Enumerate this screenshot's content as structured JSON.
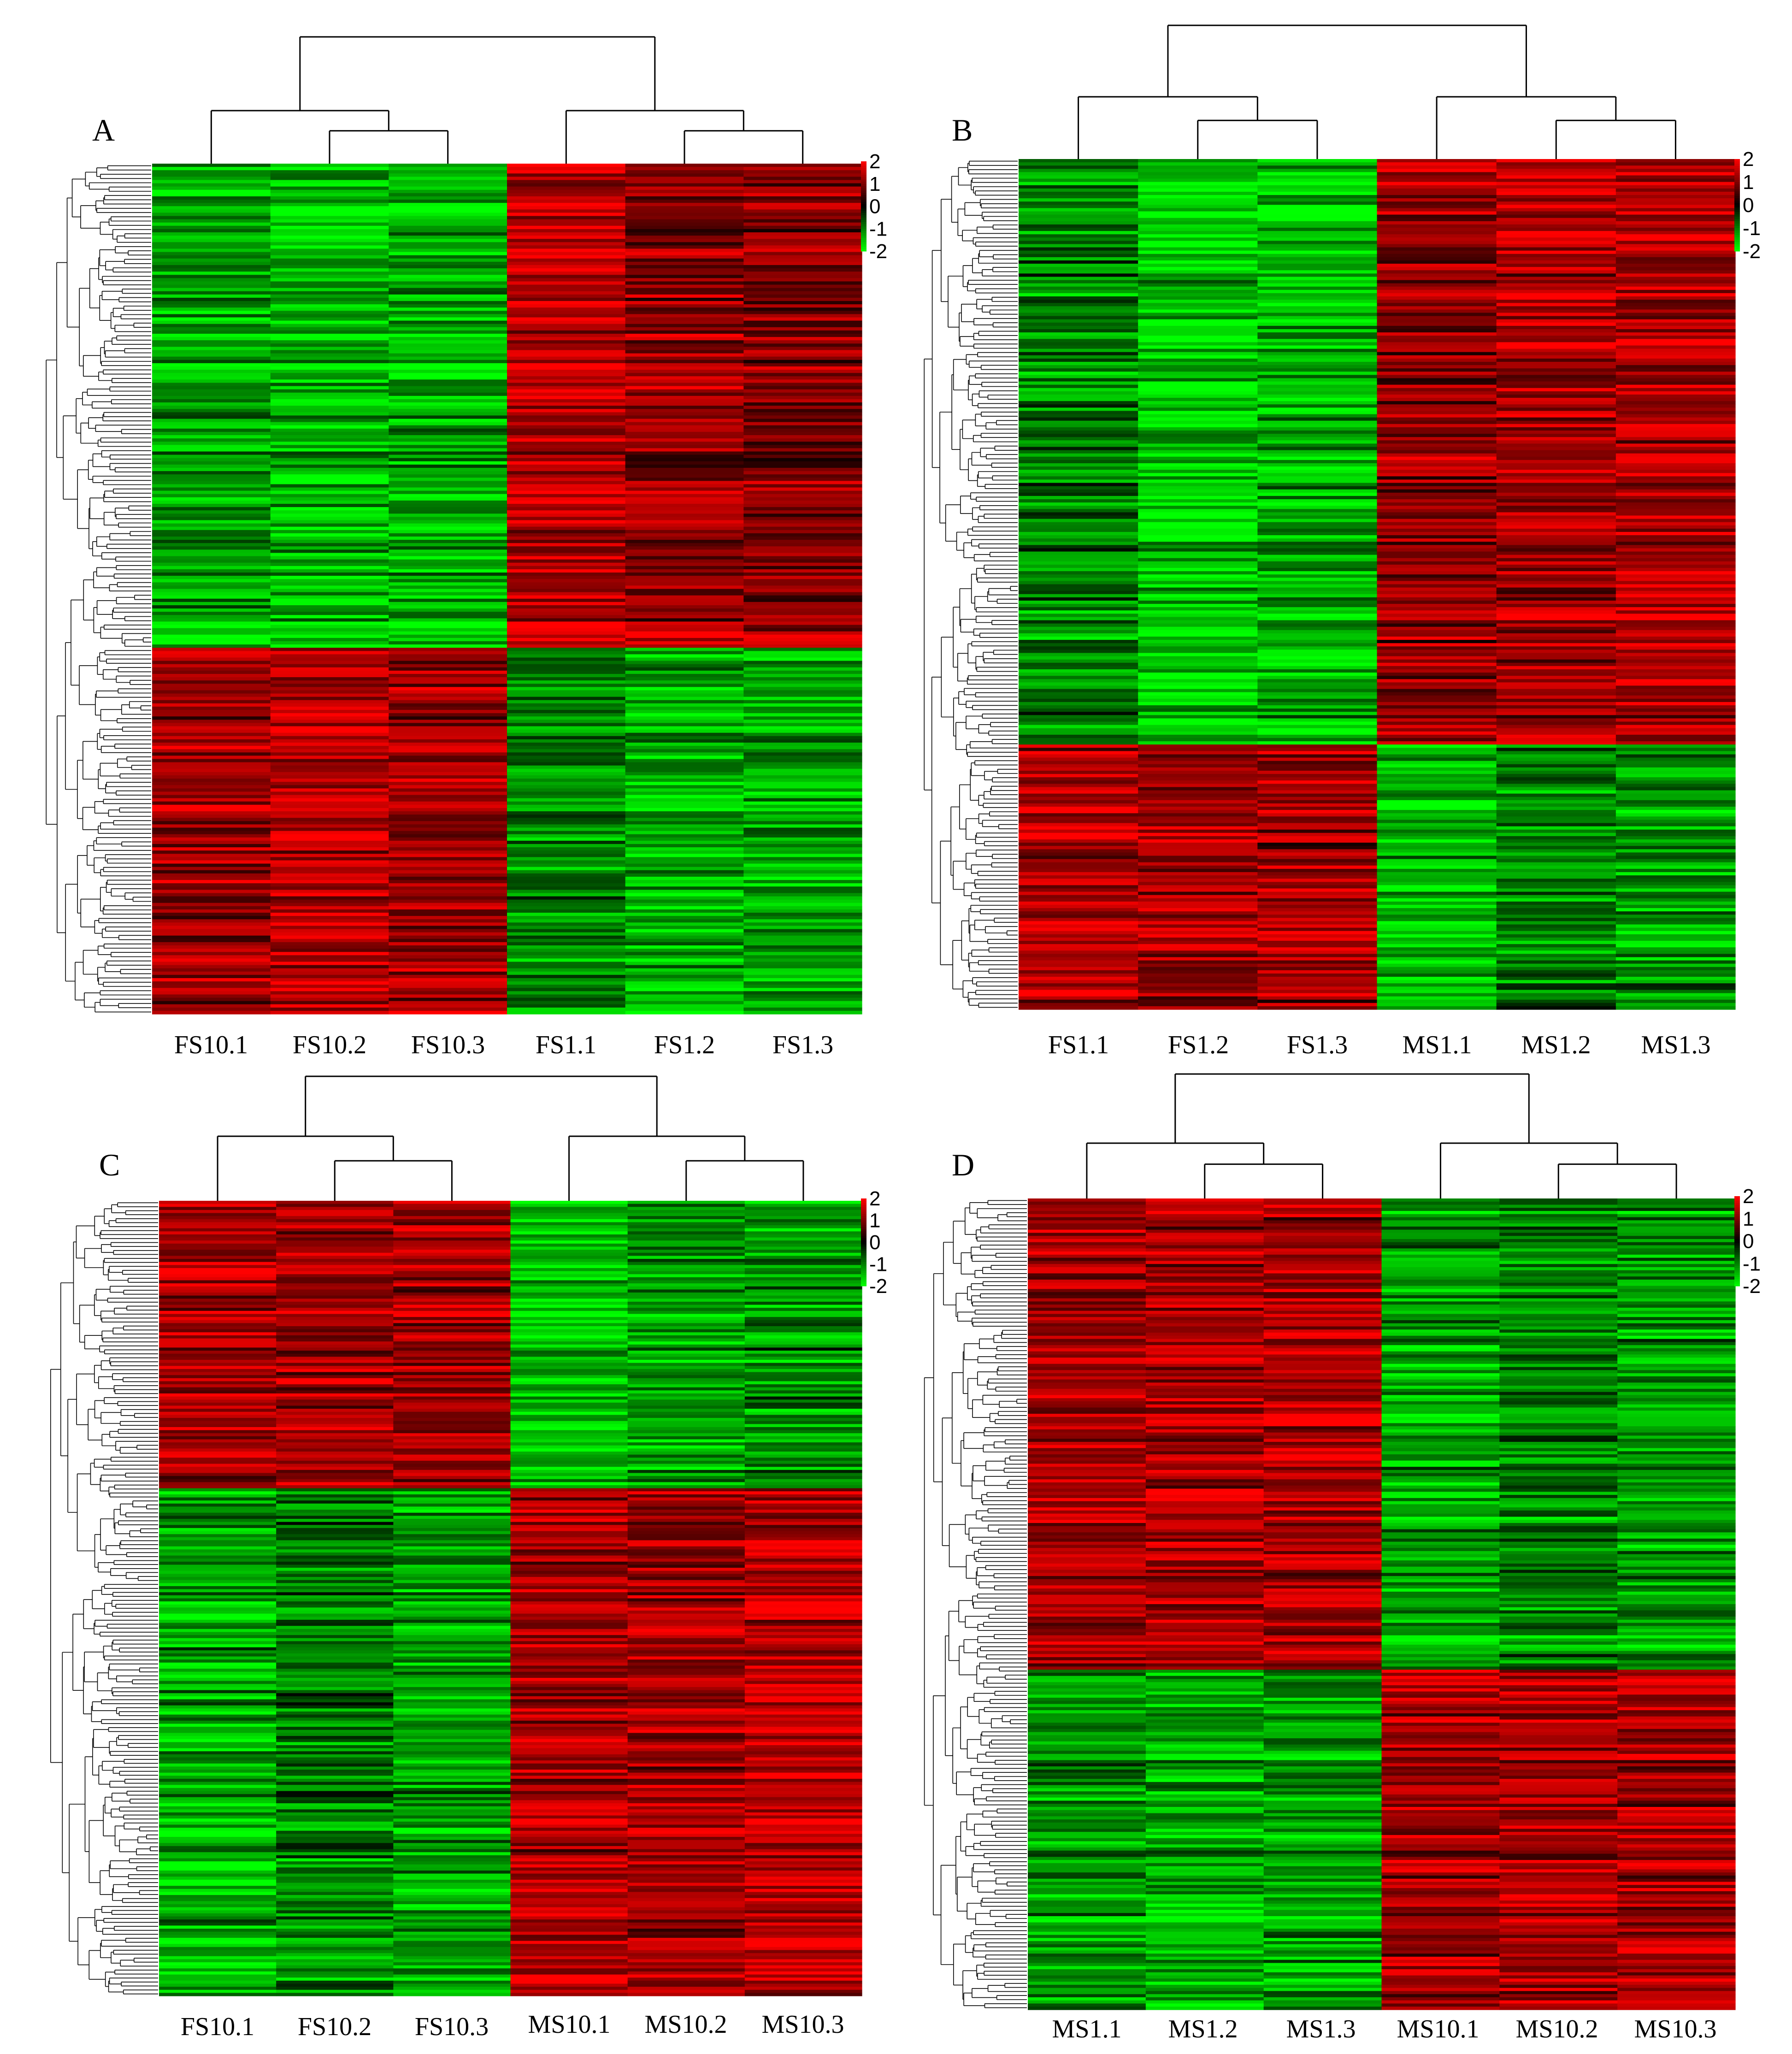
{
  "colors": {
    "low": "#00ff00",
    "mid": "#000000",
    "high": "#ff0000"
  },
  "chart_data": [
    {
      "type": "heatmap",
      "panel": "A",
      "columns": [
        "FS10.1",
        "FS10.2",
        "FS10.3",
        "FS1.1",
        "FS1.2",
        "FS1.3"
      ],
      "color_scale": {
        "ticks": [
          "2",
          "1",
          "0",
          "-1",
          "-2"
        ],
        "min": -2,
        "max": 2
      },
      "column_dendrogram": "((FS10.1,(FS10.2,FS10.3)),(FS1.1,(FS1.2,FS1.3)))",
      "row_clusters": [
        {
          "fraction": 0.57,
          "values": [
            -1.3,
            -1.5,
            -1.4,
            1.5,
            1.1,
            1.0
          ]
        },
        {
          "fraction": 0.43,
          "values": [
            1.2,
            1.5,
            1.2,
            -1.1,
            -1.4,
            -1.3
          ]
        }
      ]
    },
    {
      "type": "heatmap",
      "panel": "B",
      "columns": [
        "FS1.1",
        "FS1.2",
        "FS1.3",
        "MS1.1",
        "MS1.2",
        "MS1.3"
      ],
      "color_scale": {
        "ticks": [
          "2",
          "1",
          "0",
          "-1",
          "-2"
        ],
        "min": -2,
        "max": 2
      },
      "column_dendrogram": "((FS1.1,(FS1.2,FS1.3)),(MS1.1,(MS1.2,MS1.3)))",
      "row_clusters": [
        {
          "fraction": 0.69,
          "values": [
            -1.0,
            -1.6,
            -1.4,
            1.1,
            1.3,
            1.4
          ]
        },
        {
          "fraction": 0.31,
          "values": [
            1.3,
            1.2,
            1.2,
            -1.4,
            -1.0,
            -1.2
          ]
        }
      ]
    },
    {
      "type": "heatmap",
      "panel": "C",
      "columns": [
        "FS10.1",
        "FS10.2",
        "FS10.3",
        "MS10.1",
        "MS10.2",
        "MS10.3"
      ],
      "color_scale": {
        "ticks": [
          "2",
          "1",
          "0",
          "-1",
          "-2"
        ],
        "min": -2,
        "max": 2
      },
      "column_dendrogram": "((FS10.1,(FS10.2,FS10.3)),(MS10.1,(MS10.2,MS10.3)))",
      "row_clusters": [
        {
          "fraction": 0.36,
          "values": [
            1.3,
            1.2,
            1.2,
            -1.5,
            -1.2,
            -1.1
          ]
        },
        {
          "fraction": 0.64,
          "values": [
            -1.3,
            -1.0,
            -1.3,
            1.3,
            1.3,
            1.5
          ]
        }
      ]
    },
    {
      "type": "heatmap",
      "panel": "D",
      "columns": [
        "MS1.1",
        "MS1.2",
        "MS1.3",
        "MS10.1",
        "MS10.2",
        "MS10.3"
      ],
      "color_scale": {
        "ticks": [
          "2",
          "1",
          "0",
          "-1",
          "-2"
        ],
        "min": -2,
        "max": 2
      },
      "column_dendrogram": "((MS1.1,(MS1.2,MS1.3)),(MS10.1,(MS10.2,MS10.3)))",
      "row_clusters": [
        {
          "fraction": 0.58,
          "values": [
            1.3,
            1.3,
            1.3,
            -1.3,
            -1.0,
            -1.2
          ]
        },
        {
          "fraction": 0.42,
          "values": [
            -1.2,
            -1.3,
            -1.2,
            1.3,
            1.3,
            1.3
          ]
        }
      ]
    }
  ]
}
